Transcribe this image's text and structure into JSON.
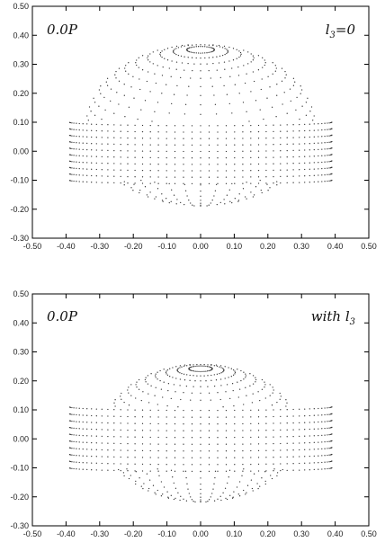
{
  "chart_data": [
    {
      "type": "scatter",
      "xlim": [
        -0.5,
        0.5
      ],
      "ylim": [
        -0.3,
        0.5
      ],
      "xticks": [
        "-0.50",
        "-0.40",
        "-0.30",
        "-0.20",
        "-0.10",
        "0.00",
        "0.10",
        "0.20",
        "0.30",
        "0.40",
        "0.50"
      ],
      "yticks": [
        "-0.30",
        "-0.20",
        "-0.10",
        "0.00",
        "0.10",
        "0.20",
        "0.30",
        "0.40",
        "0.50"
      ],
      "annotation_left": "0.0P",
      "annotation_right": "l3=0",
      "grid": false,
      "sphere": {
        "center_y": 0.09,
        "radius": 0.34
      },
      "band": {
        "x_min": -0.39,
        "x_max": 0.39,
        "y_min": -0.1,
        "y_max": 0.1
      }
    },
    {
      "type": "scatter",
      "xlim": [
        -0.5,
        0.5
      ],
      "ylim": [
        -0.3,
        0.5
      ],
      "xticks": [
        "-0.50",
        "-0.40",
        "-0.30",
        "-0.20",
        "-0.10",
        "0.00",
        "0.10",
        "0.20",
        "0.30",
        "0.40",
        "0.50"
      ],
      "yticks": [
        "-0.30",
        "-0.20",
        "-0.10",
        "0.00",
        "0.10",
        "0.20",
        "0.30",
        "0.40",
        "0.50"
      ],
      "annotation_left": "0.0P",
      "annotation_right": "with l3",
      "grid": false,
      "sphere": {
        "center_y": 0.02,
        "radius": 0.29
      },
      "band": {
        "x_min": -0.39,
        "x_max": 0.39,
        "y_min": -0.1,
        "y_max": 0.11
      }
    }
  ]
}
